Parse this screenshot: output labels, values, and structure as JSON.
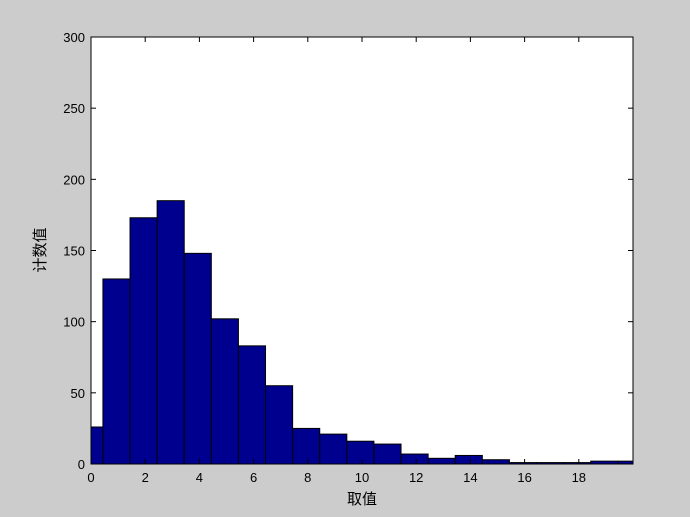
{
  "chart_data": {
    "type": "bar",
    "title": "",
    "xlabel": "取值",
    "ylabel": "计数值",
    "xlim": [
      0,
      20
    ],
    "ylim": [
      0,
      300
    ],
    "xticks": [
      0,
      2,
      4,
      6,
      8,
      10,
      12,
      14,
      16,
      18
    ],
    "yticks": [
      0,
      50,
      100,
      150,
      200,
      250,
      300
    ],
    "grid": false,
    "bin_width": 1.0,
    "bin_centers": [
      -0.06,
      0.94,
      1.94,
      2.94,
      3.94,
      4.94,
      5.94,
      6.94,
      7.94,
      8.94,
      9.94,
      10.94,
      11.94,
      12.94,
      13.94,
      14.94,
      15.94,
      16.94,
      17.94,
      18.94,
      19.94
    ],
    "values": [
      26,
      130,
      173,
      185,
      148,
      102,
      83,
      55,
      25,
      21,
      16,
      14,
      7,
      4,
      6,
      3,
      1,
      1,
      1,
      2,
      2
    ],
    "bar_color": "#00008f",
    "edge_color": "#000000",
    "background_color": "#cccccc",
    "axes_color": "#ffffff"
  }
}
